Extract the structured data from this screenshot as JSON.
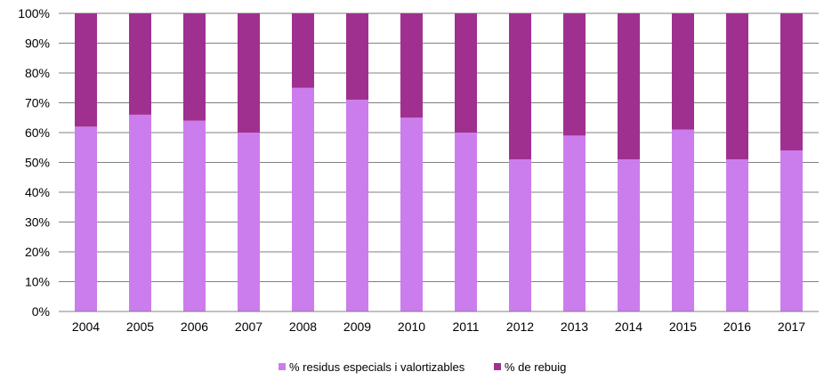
{
  "chart_data": {
    "type": "bar",
    "stacked": true,
    "normalized": true,
    "categories": [
      "2004",
      "2005",
      "2006",
      "2007",
      "2008",
      "2009",
      "2010",
      "2011",
      "2012",
      "2013",
      "2014",
      "2015",
      "2016",
      "2017"
    ],
    "series": [
      {
        "name": "% residus especials i valortizables",
        "color": "#cc7ded",
        "values": [
          62,
          66,
          64,
          60,
          75,
          71,
          65,
          60,
          51,
          59,
          51,
          61,
          51,
          54
        ]
      },
      {
        "name": "% de rebuig",
        "color": "#a03090",
        "values": [
          38,
          34,
          36,
          40,
          25,
          29,
          35,
          40,
          49,
          41,
          49,
          39,
          49,
          46
        ]
      }
    ],
    "ylim": [
      0,
      100
    ],
    "yticks": [
      "0%",
      "10%",
      "20%",
      "30%",
      "40%",
      "50%",
      "60%",
      "70%",
      "80%",
      "90%",
      "100%"
    ],
    "grid": true,
    "legend_position": "bottom"
  }
}
